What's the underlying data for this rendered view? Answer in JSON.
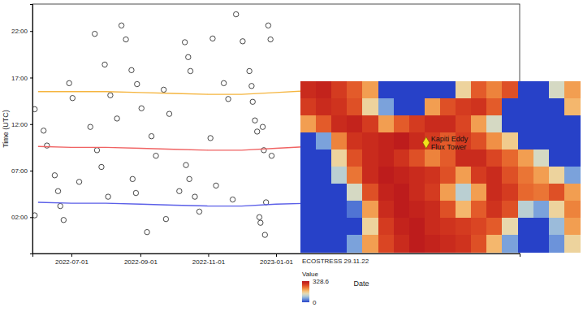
{
  "chart_data": [
    {
      "type": "scatter",
      "x_label": "Date",
      "y_label": "Time (UTC)",
      "xlim": [
        "2022-05-27",
        "2023-08-08"
      ],
      "xticks": [
        "2022-07-01",
        "2022-09-01",
        "2022-11-01",
        "2023-01-01"
      ],
      "ylim": [
        -1.9,
        24.9
      ],
      "yticks": [
        {
          "value": 2,
          "label": "02:00"
        },
        {
          "value": 7,
          "label": "07:00"
        },
        {
          "value": 12,
          "label": "12:00"
        },
        {
          "value": 17,
          "label": "17:00"
        },
        {
          "value": 22,
          "label": "22:00"
        }
      ],
      "grid": false,
      "series": [
        {
          "type": "scatter",
          "marker": "circle",
          "color": "#333333",
          "x": [
            "2022-05-29",
            "2022-05-29",
            "2022-06-06",
            "2022-06-09",
            "2022-06-16",
            "2022-06-19",
            "2022-06-21",
            "2022-06-24",
            "2022-06-29",
            "2022-07-02",
            "2022-07-08",
            "2022-07-18",
            "2022-07-22",
            "2022-07-24",
            "2022-07-28",
            "2022-07-31",
            "2022-08-03",
            "2022-08-05",
            "2022-08-11",
            "2022-08-15",
            "2022-08-19",
            "2022-08-24",
            "2022-08-25",
            "2022-08-28",
            "2022-08-29",
            "2022-09-02",
            "2022-09-07",
            "2022-09-11",
            "2022-09-15",
            "2022-09-22",
            "2022-09-24",
            "2022-09-27",
            "2022-10-06",
            "2022-10-11",
            "2022-10-12",
            "2022-10-14",
            "2022-10-15",
            "2022-10-16",
            "2022-10-20",
            "2022-10-24",
            "2022-11-03",
            "2022-11-05",
            "2022-11-08",
            "2022-11-15",
            "2022-11-19",
            "2022-11-23",
            "2022-11-26",
            "2022-12-02",
            "2022-12-08",
            "2022-12-10",
            "2022-12-11",
            "2022-12-13",
            "2022-12-15",
            "2022-12-17",
            "2022-12-18",
            "2022-12-20",
            "2022-12-21",
            "2022-12-22",
            "2022-12-23",
            "2022-12-25",
            "2022-12-27",
            "2022-12-28"
          ],
          "values": [
            13.6,
            2.2,
            11.3,
            9.7,
            6.5,
            4.8,
            3.2,
            1.7,
            16.4,
            14.8,
            5.8,
            11.7,
            21.7,
            9.2,
            7.4,
            18.4,
            4.2,
            15.1,
            12.6,
            22.6,
            21.1,
            17.8,
            6.1,
            4.6,
            16.3,
            13.7,
            0.4,
            10.7,
            8.6,
            15.7,
            1.8,
            13.1,
            4.8,
            20.8,
            7.6,
            19.2,
            6.1,
            17.7,
            4.2,
            2.6,
            10.5,
            21.2,
            5.4,
            16.4,
            14.7,
            3.9,
            23.8,
            20.9,
            17.7,
            16.1,
            14.4,
            12.4,
            11.2,
            2.0,
            1.4,
            11.7,
            9.2,
            0.1,
            3.6,
            22.6,
            21.1,
            8.6
          ]
        },
        {
          "type": "line",
          "line_style": "solid",
          "color": "#f5b53f",
          "x": [
            "2022-06-01",
            "2022-07-01",
            "2022-08-01",
            "2022-09-01",
            "2022-10-01",
            "2022-11-01",
            "2022-12-01",
            "2023-01-01",
            "2023-02-01",
            "2023-03-01",
            "2023-04-01",
            "2023-05-01",
            "2023-06-01",
            "2023-07-01",
            "2023-08-01"
          ],
          "values": [
            15.5,
            15.5,
            15.5,
            15.4,
            15.3,
            15.2,
            15.2,
            15.4,
            15.6,
            15.8,
            15.8,
            15.7,
            15.6,
            15.5,
            15.5
          ]
        },
        {
          "type": "line",
          "line_style": "solid",
          "color": "#f06262",
          "x": [
            "2022-06-01",
            "2022-07-01",
            "2022-08-01",
            "2022-09-01",
            "2022-10-01",
            "2022-11-01",
            "2022-12-01",
            "2023-01-01",
            "2023-02-01",
            "2023-03-01",
            "2023-04-01",
            "2023-05-01",
            "2023-06-01",
            "2023-07-01",
            "2023-08-01"
          ],
          "values": [
            9.6,
            9.5,
            9.5,
            9.4,
            9.3,
            9.2,
            9.2,
            9.4,
            9.6,
            9.7,
            9.7,
            9.7,
            9.6,
            9.6,
            9.6
          ]
        },
        {
          "type": "line",
          "line_style": "solid",
          "color": "#5b5fe8",
          "x": [
            "2022-06-01",
            "2022-07-01",
            "2022-08-01",
            "2022-09-01",
            "2022-10-01",
            "2022-11-01",
            "2022-12-01",
            "2023-01-01",
            "2023-02-01",
            "2023-03-01",
            "2023-04-01",
            "2023-05-01",
            "2023-06-01",
            "2023-07-01",
            "2023-08-01"
          ],
          "values": [
            3.6,
            3.5,
            3.5,
            3.4,
            3.3,
            3.2,
            3.2,
            3.4,
            3.5,
            3.7,
            3.7,
            3.7,
            3.6,
            3.6,
            3.6
          ]
        }
      ]
    },
    {
      "type": "heatmap",
      "title": "ECOSTRESS 29.11.22",
      "colorbar_label": "Value",
      "colorbar_range": [
        0,
        328.6
      ],
      "colorbar_ticks": [
        0,
        328.6
      ],
      "annotations": [
        "Kapiti Eddy",
        "Flux Tower"
      ],
      "values": [
        [
          300,
          310,
          280,
          250,
          200,
          0,
          0,
          0,
          0,
          0,
          150,
          250,
          220,
          260,
          0,
          0,
          120,
          200
        ],
        [
          280,
          300,
          290,
          260,
          150,
          60,
          0,
          0,
          200,
          260,
          280,
          290,
          250,
          0,
          0,
          0,
          0,
          180
        ],
        [
          200,
          250,
          300,
          310,
          280,
          200,
          250,
          280,
          300,
          300,
          270,
          200,
          120,
          0,
          0,
          0,
          0,
          0
        ],
        [
          0,
          60,
          220,
          290,
          300,
          310,
          320,
          300,
          280,
          250,
          280,
          260,
          210,
          160,
          0,
          0,
          0,
          0
        ],
        [
          0,
          0,
          150,
          260,
          300,
          310,
          290,
          260,
          220,
          250,
          300,
          300,
          270,
          240,
          200,
          120,
          0,
          0
        ],
        [
          0,
          0,
          100,
          230,
          300,
          320,
          310,
          300,
          290,
          260,
          200,
          280,
          300,
          260,
          230,
          200,
          150,
          60
        ],
        [
          0,
          0,
          0,
          120,
          260,
          310,
          320,
          300,
          280,
          200,
          100,
          200,
          300,
          280,
          240,
          230,
          260,
          200
        ],
        [
          0,
          0,
          0,
          30,
          200,
          300,
          320,
          310,
          300,
          260,
          180,
          250,
          290,
          260,
          100,
          60,
          150,
          220
        ],
        [
          0,
          0,
          0,
          0,
          150,
          280,
          310,
          320,
          300,
          290,
          280,
          270,
          250,
          140,
          0,
          0,
          80,
          200
        ],
        [
          0,
          0,
          0,
          60,
          200,
          270,
          300,
          320,
          310,
          300,
          290,
          260,
          180,
          60,
          0,
          0,
          50,
          150
        ]
      ]
    }
  ]
}
